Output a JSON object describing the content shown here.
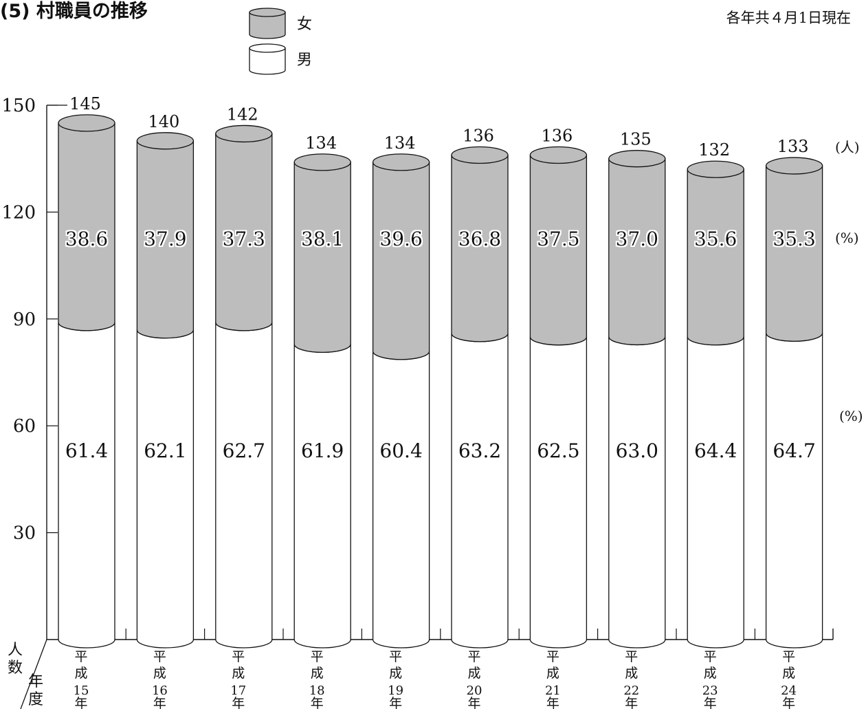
{
  "header": {
    "title": "(5) 村職員の推移",
    "date_note": "各年共４月1日現在"
  },
  "chart_data": {
    "type": "bar",
    "stacked": true,
    "title": "(5) 村職員の推移",
    "ylabel": "人数",
    "xlabel": "年度",
    "ylim": [
      0,
      150
    ],
    "yticks": [
      "30",
      "60",
      "90",
      "120",
      "150"
    ],
    "yticks_values": [
      30,
      60,
      90,
      120,
      150
    ],
    "categories": [
      "平成15年",
      "平成16年",
      "平成17年",
      "平成18年",
      "平成19年",
      "平成20年",
      "平成21年",
      "平成22年",
      "平成23年",
      "平成24年"
    ],
    "category_parts": [
      {
        "era": "平成",
        "year": "15",
        "suffix": "年"
      },
      {
        "era": "平成",
        "year": "16",
        "suffix": "年"
      },
      {
        "era": "平成",
        "year": "17",
        "suffix": "年"
      },
      {
        "era": "平成",
        "year": "18",
        "suffix": "年"
      },
      {
        "era": "平成",
        "year": "19",
        "suffix": "年"
      },
      {
        "era": "平成",
        "year": "20",
        "suffix": "年"
      },
      {
        "era": "平成",
        "year": "21",
        "suffix": "年"
      },
      {
        "era": "平成",
        "year": "22",
        "suffix": "年"
      },
      {
        "era": "平成",
        "year": "23",
        "suffix": "年"
      },
      {
        "era": "平成",
        "year": "24",
        "suffix": "年"
      }
    ],
    "totals": [
      145,
      140,
      142,
      134,
      134,
      136,
      136,
      135,
      132,
      133
    ],
    "total_labels": [
      "145",
      "140",
      "142",
      "134",
      "134",
      "136",
      "136",
      "135",
      "132",
      "133"
    ],
    "series": [
      {
        "name": "男",
        "color": "#ffffff",
        "percent": [
          61.4,
          62.1,
          62.7,
          61.9,
          60.4,
          63.2,
          62.5,
          63.0,
          64.4,
          64.7
        ],
        "percent_labels": [
          "61.4",
          "62.1",
          "62.7",
          "61.9",
          "60.4",
          "63.2",
          "62.5",
          "63.0",
          "64.4",
          "64.7"
        ]
      },
      {
        "name": "女",
        "color": "#bdbdbd",
        "percent": [
          38.6,
          37.9,
          37.3,
          38.1,
          39.6,
          36.8,
          37.5,
          37.0,
          35.6,
          35.3
        ],
        "percent_labels": [
          "38.6",
          "37.9",
          "37.3",
          "38.1",
          "39.6",
          "36.8",
          "37.5",
          "37.0",
          "35.6",
          "35.3"
        ]
      }
    ],
    "unit_labels": {
      "total": "(人)",
      "female_percent": "(%)",
      "male_percent": "(%)"
    },
    "legend": {
      "placement": "top-center",
      "entries": [
        {
          "label": "女",
          "color": "#bdbdbd"
        },
        {
          "label": "男",
          "color": "#ffffff"
        }
      ]
    },
    "grid": false,
    "shape": "cylinder"
  }
}
